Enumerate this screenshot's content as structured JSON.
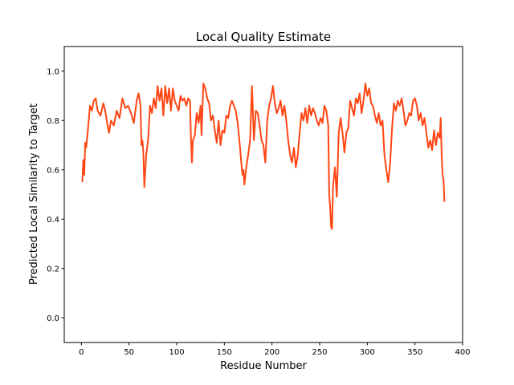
{
  "chart_data": {
    "type": "line",
    "title": "Local Quality Estimate",
    "xlabel": "Residue Number",
    "ylabel": "Predicted Local Similarity to Target",
    "x": [
      1,
      2,
      3,
      4,
      5,
      7,
      9,
      11,
      13,
      15,
      17,
      20,
      23,
      25,
      27,
      29,
      31,
      34,
      37,
      40,
      43,
      46,
      49,
      52,
      55,
      58,
      60,
      62,
      63,
      64,
      65,
      66,
      68,
      70,
      72,
      74,
      76,
      78,
      80,
      82,
      84,
      86,
      88,
      90,
      92,
      94,
      96,
      98,
      100,
      102,
      104,
      106,
      108,
      110,
      112,
      114,
      115,
      116,
      117,
      119,
      121,
      123,
      125,
      126,
      128,
      130,
      132,
      134,
      136,
      138,
      140,
      142,
      144,
      146,
      148,
      150,
      152,
      154,
      156,
      158,
      160,
      162,
      164,
      166,
      168,
      169,
      170,
      171,
      173,
      175,
      177,
      179,
      181,
      183,
      185,
      187,
      189,
      191,
      193,
      195,
      197,
      199,
      201,
      203,
      205,
      207,
      209,
      211,
      213,
      215,
      217,
      219,
      221,
      223,
      225,
      227,
      229,
      231,
      233,
      235,
      237,
      239,
      241,
      243,
      245,
      247,
      249,
      251,
      253,
      255,
      257,
      259,
      260,
      261,
      262,
      263,
      264,
      266,
      268,
      270,
      272,
      274,
      276,
      278,
      280,
      282,
      284,
      286,
      288,
      290,
      292,
      294,
      296,
      298,
      300,
      302,
      304,
      306,
      308,
      310,
      312,
      314,
      316,
      318,
      320,
      322,
      324,
      326,
      328,
      330,
      332,
      334,
      336,
      338,
      340,
      342,
      344,
      346,
      348,
      350,
      352,
      354,
      356,
      358,
      360,
      362,
      364,
      366,
      368,
      370,
      372,
      374,
      376,
      377,
      378,
      379,
      380,
      381
    ],
    "series": [
      {
        "color": "#ff4513",
        "values": [
          0.55,
          0.64,
          0.58,
          0.71,
          0.69,
          0.77,
          0.86,
          0.84,
          0.88,
          0.89,
          0.84,
          0.82,
          0.87,
          0.84,
          0.79,
          0.75,
          0.8,
          0.78,
          0.84,
          0.81,
          0.89,
          0.85,
          0.86,
          0.83,
          0.79,
          0.88,
          0.91,
          0.86,
          0.7,
          0.72,
          0.67,
          0.53,
          0.66,
          0.72,
          0.86,
          0.83,
          0.89,
          0.85,
          0.94,
          0.88,
          0.93,
          0.82,
          0.94,
          0.87,
          0.93,
          0.84,
          0.93,
          0.88,
          0.86,
          0.84,
          0.9,
          0.88,
          0.89,
          0.86,
          0.89,
          0.88,
          0.72,
          0.63,
          0.72,
          0.74,
          0.83,
          0.79,
          0.86,
          0.74,
          0.95,
          0.93,
          0.89,
          0.87,
          0.8,
          0.82,
          0.76,
          0.71,
          0.8,
          0.7,
          0.76,
          0.75,
          0.82,
          0.81,
          0.86,
          0.88,
          0.86,
          0.84,
          0.79,
          0.71,
          0.62,
          0.58,
          0.6,
          0.54,
          0.61,
          0.66,
          0.72,
          0.94,
          0.72,
          0.84,
          0.83,
          0.78,
          0.72,
          0.7,
          0.63,
          0.8,
          0.86,
          0.89,
          0.94,
          0.87,
          0.83,
          0.85,
          0.88,
          0.82,
          0.86,
          0.8,
          0.72,
          0.66,
          0.63,
          0.69,
          0.61,
          0.66,
          0.75,
          0.83,
          0.8,
          0.85,
          0.79,
          0.86,
          0.82,
          0.85,
          0.83,
          0.8,
          0.78,
          0.81,
          0.79,
          0.86,
          0.84,
          0.78,
          0.5,
          0.45,
          0.37,
          0.36,
          0.53,
          0.61,
          0.49,
          0.75,
          0.81,
          0.75,
          0.67,
          0.75,
          0.77,
          0.88,
          0.85,
          0.82,
          0.89,
          0.87,
          0.91,
          0.83,
          0.88,
          0.95,
          0.9,
          0.93,
          0.87,
          0.86,
          0.82,
          0.79,
          0.83,
          0.78,
          0.8,
          0.66,
          0.6,
          0.55,
          0.63,
          0.77,
          0.87,
          0.84,
          0.88,
          0.86,
          0.89,
          0.84,
          0.78,
          0.8,
          0.83,
          0.82,
          0.88,
          0.89,
          0.86,
          0.8,
          0.83,
          0.78,
          0.81,
          0.75,
          0.69,
          0.72,
          0.68,
          0.76,
          0.7,
          0.75,
          0.73,
          0.81,
          0.66,
          0.58,
          0.56,
          0.47
        ]
      }
    ],
    "xlim": [
      -18,
      400
    ],
    "xticks": [
      0,
      50,
      100,
      150,
      200,
      250,
      300,
      350,
      400
    ],
    "ylim": [
      -0.1,
      1.1
    ],
    "yticks": [
      {
        "value": 0,
        "label": "0.0"
      },
      {
        "value": 0.2,
        "label": "0.2"
      },
      {
        "value": 0.4,
        "label": "0.4"
      },
      {
        "value": 0.6,
        "label": "0.6"
      },
      {
        "value": 0.8,
        "label": "0.8"
      },
      {
        "value": 1,
        "label": "1.0"
      }
    ],
    "grid": false
  }
}
